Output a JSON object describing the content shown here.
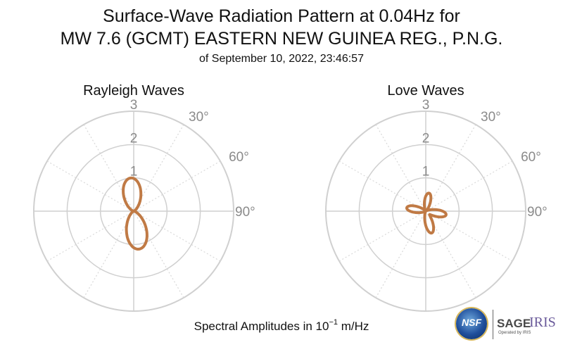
{
  "title_line1": "Surface-Wave Radiation Pattern at 0.04Hz for",
  "title_line2": "MW 7.6 (GCMT) EASTERN NEW GUINEA REG., P.N.G.",
  "title_line3": "of September 10, 2022, 23:46:57",
  "footer": {
    "prefix": "Spectral Amplitudes in 10",
    "exponent": "−1",
    "suffix": " m/Hz"
  },
  "logos": {
    "nsf": "NSF",
    "sage": "SAGE",
    "iris": "IRIS",
    "operated_by": "Operated by IRIS"
  },
  "colors": {
    "curve": "#c07a45",
    "grid_ring": "#d0d0d0",
    "grid_spoke": "#d8d8d8",
    "labels": "#8a8a8a"
  },
  "chart_data": [
    {
      "type": "polar-line",
      "title": "Rayleigh Waves",
      "radial_ticks": [
        "1",
        "2",
        "3"
      ],
      "radial_max": 3,
      "angle_labels": [
        "30°",
        "60°",
        "90°"
      ],
      "angle_step_deg": 30,
      "series": [
        {
          "pattern": "two-lobe",
          "lobes": [
            {
              "azimuth_deg": 355,
              "amplitude": 1.0,
              "width": 0.9
            },
            {
              "azimuth_deg": 172,
              "amplitude": 1.15,
              "width": 0.9
            }
          ]
        }
      ]
    },
    {
      "type": "polar-line",
      "title": "Love Waves",
      "radial_ticks": [
        "1",
        "2",
        "3"
      ],
      "radial_max": 3,
      "angle_labels": [
        "30°",
        "60°",
        "90°"
      ],
      "angle_step_deg": 30,
      "series": [
        {
          "pattern": "four-lobe",
          "lobes": [
            {
              "azimuth_deg": 10,
              "amplitude": 0.55,
              "width": 0.55
            },
            {
              "azimuth_deg": 100,
              "amplitude": 0.62,
              "width": 0.55
            },
            {
              "azimuth_deg": 165,
              "amplitude": 0.68,
              "width": 0.55
            },
            {
              "azimuth_deg": 280,
              "amplitude": 0.58,
              "width": 0.55
            }
          ]
        }
      ]
    }
  ]
}
